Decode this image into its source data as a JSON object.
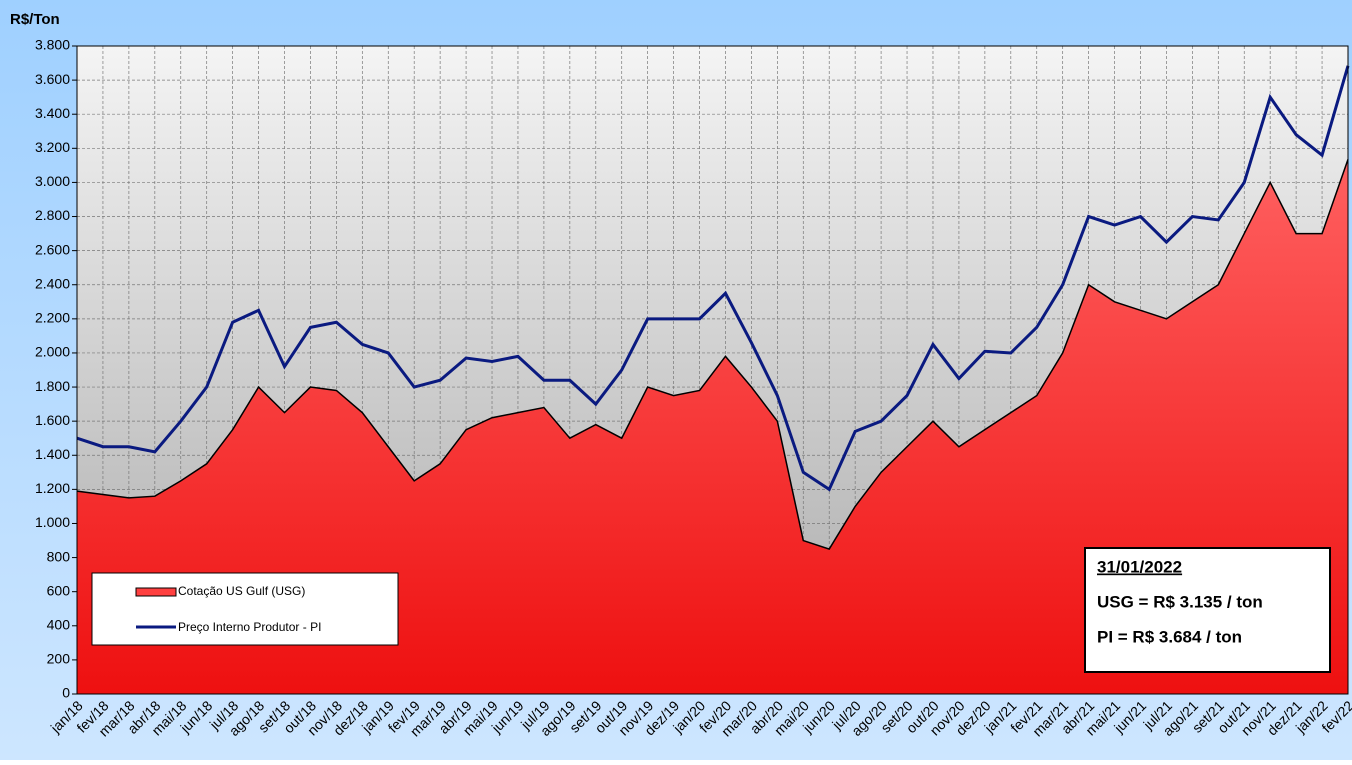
{
  "chart_data": {
    "type": "area_line",
    "y_label": "R$/Ton",
    "categories": [
      "jan/18",
      "fev/18",
      "mar/18",
      "abr/18",
      "mai/18",
      "jun/18",
      "jul/18",
      "ago/18",
      "set/18",
      "out/18",
      "nov/18",
      "dez/18",
      "jan/19",
      "fev/19",
      "mar/19",
      "abr/19",
      "mai/19",
      "jun/19",
      "jul/19",
      "ago/19",
      "set/19",
      "out/19",
      "nov/19",
      "dez/19",
      "jan/20",
      "fev/20",
      "mar/20",
      "abr/20",
      "mai/20",
      "jun/20",
      "jul/20",
      "ago/20",
      "set/20",
      "out/20",
      "nov/20",
      "dez/20",
      "jan/21",
      "fev/21",
      "mar/21",
      "abr/21",
      "mai/21",
      "jun/21",
      "jul/21",
      "ago/21",
      "set/21",
      "out/21",
      "nov/21",
      "dez/21",
      "jan/22",
      "fev/22"
    ],
    "series": [
      {
        "name": "Cotação US Gulf (USG)",
        "color": "#ff2a2a",
        "values": [
          1190,
          1170,
          1150,
          1160,
          1250,
          1350,
          1550,
          1800,
          1650,
          1800,
          1780,
          1650,
          1450,
          1250,
          1350,
          1550,
          1620,
          1650,
          1680,
          1500,
          1580,
          1500,
          1800,
          1750,
          1780,
          1980,
          1800,
          1600,
          900,
          850,
          1100,
          1300,
          1450,
          1600,
          1450,
          1550,
          1650,
          1750,
          2000,
          2400,
          2300,
          2250,
          2200,
          2300,
          2400,
          2700,
          3000,
          2700,
          2700,
          3135
        ]
      },
      {
        "name": "Preço Interno Produtor - PI",
        "color": "#0a1a80",
        "values": [
          1500,
          1450,
          1450,
          1420,
          1600,
          1800,
          2180,
          2250,
          1920,
          2150,
          2180,
          2050,
          2000,
          1800,
          1840,
          1970,
          1950,
          1980,
          1840,
          1840,
          1700,
          1900,
          2200,
          2200,
          2200,
          2350,
          2060,
          1750,
          1300,
          1200,
          1540,
          1600,
          1750,
          2050,
          1850,
          2010,
          2000,
          2150,
          2400,
          2800,
          2750,
          2800,
          2650,
          2800,
          2780,
          3000,
          3500,
          3280,
          3160,
          3684
        ]
      }
    ],
    "ylim": [
      0,
      3800
    ],
    "yticks": [
      0,
      200,
      400,
      600,
      800,
      {
        "value": 1000,
        "label": "1.000"
      },
      {
        "value": 1200,
        "label": "1.200"
      },
      {
        "value": 1400,
        "label": "1.400"
      },
      {
        "value": 1600,
        "label": "1.600"
      },
      {
        "value": 1800,
        "label": "1.800"
      },
      {
        "value": 2000,
        "label": "2.000"
      },
      {
        "value": 2200,
        "label": "2.200"
      },
      {
        "value": 2400,
        "label": "2.400"
      },
      {
        "value": 2600,
        "label": "2.600"
      },
      {
        "value": 2800,
        "label": "2.800"
      },
      {
        "value": 3000,
        "label": "3.000"
      },
      {
        "value": 3200,
        "label": "3.200"
      },
      {
        "value": 3400,
        "label": "3.400"
      },
      {
        "value": 3600,
        "label": "3.600"
      },
      {
        "value": 3800,
        "label": "3.800"
      }
    ],
    "grid": true,
    "annotations": [
      "31/01/2022",
      "USG = R$ 3.135 / ton",
      "PI = R$ 3.684 / ton"
    ]
  }
}
